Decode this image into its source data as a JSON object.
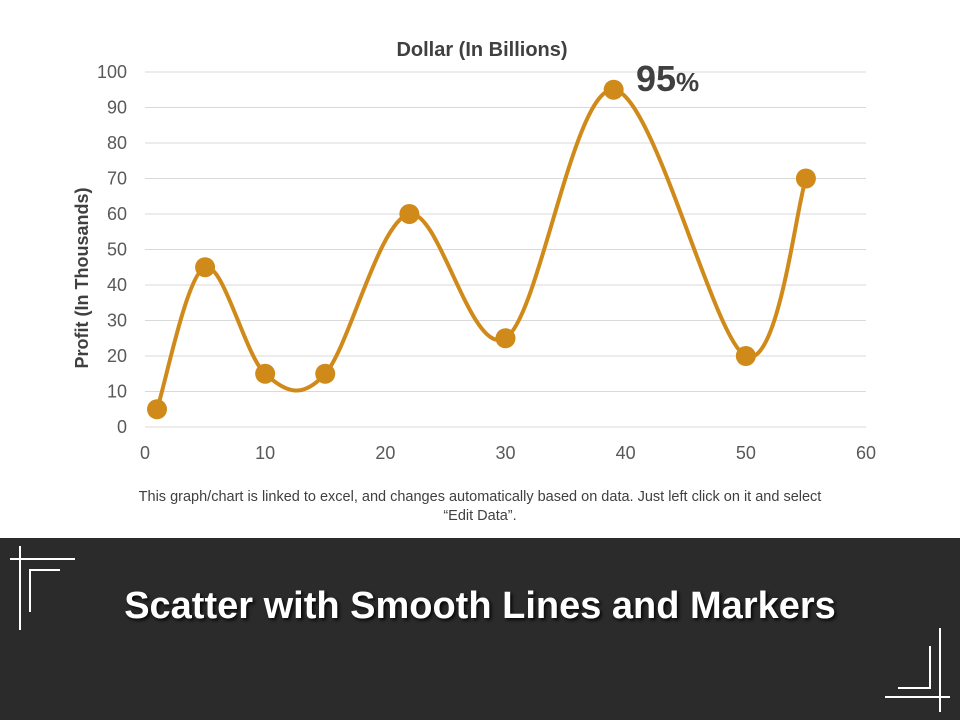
{
  "chart_data": {
    "type": "scatter",
    "subtype": "smooth-lines-and-markers",
    "title": "Dollar (In Billions)",
    "xlabel": "",
    "ylabel": "Profit  (In Thousands)",
    "xlim": [
      0,
      60
    ],
    "ylim": [
      0,
      100
    ],
    "xticks": [
      0,
      10,
      20,
      30,
      40,
      50,
      60
    ],
    "yticks": [
      0,
      10,
      20,
      30,
      40,
      50,
      60,
      70,
      80,
      90,
      100
    ],
    "grid": true,
    "legend": "none",
    "series": [
      {
        "color": "#d08a1a",
        "points": [
          {
            "x": 1,
            "y": 5
          },
          {
            "x": 5,
            "y": 45
          },
          {
            "x": 10,
            "y": 15
          },
          {
            "x": 15,
            "y": 15
          },
          {
            "x": 22,
            "y": 60
          },
          {
            "x": 30,
            "y": 25
          },
          {
            "x": 39,
            "y": 95
          },
          {
            "x": 50,
            "y": 20
          },
          {
            "x": 55,
            "y": 70
          }
        ]
      }
    ],
    "annotation": {
      "value": "95",
      "unit": "%"
    }
  },
  "note": "This graph/chart is linked to excel, and changes automatically based on data. Just left click on it and select “Edit Data”.",
  "footer": {
    "title": "Scatter with Smooth Lines and Markers"
  },
  "colors": {
    "series": "#d08a1a",
    "footer_band": "#2b2b2b",
    "text": "#404040"
  }
}
